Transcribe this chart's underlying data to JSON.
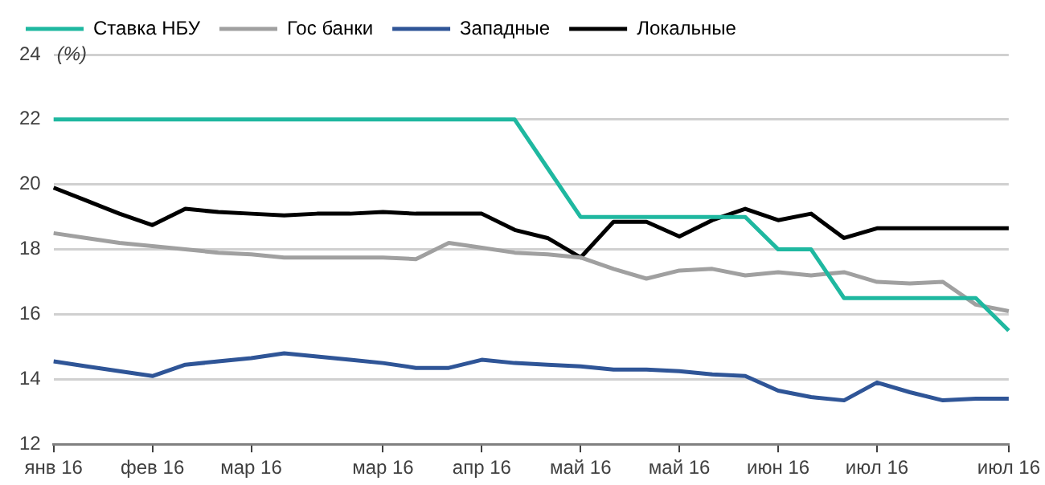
{
  "chart_data": {
    "type": "line",
    "ylabel": "(%)",
    "legend": "top left",
    "grid": "y",
    "marker": "none",
    "line_style": "solid",
    "ylim": [
      12,
      24
    ],
    "yticks": [
      12,
      14,
      16,
      18,
      20,
      22,
      24
    ],
    "categories": [
      "янв 16",
      null,
      null,
      "фев 16",
      null,
      null,
      "мар 16",
      null,
      null,
      null,
      "мар 16",
      null,
      null,
      "апр 16",
      null,
      null,
      "май 16",
      null,
      null,
      "май 16",
      null,
      null,
      "июн 16",
      null,
      null,
      "июл 16",
      null,
      null,
      null,
      "июл 16"
    ],
    "series": [
      {
        "name": "Ставка НБУ",
        "color": "#1fb8a0",
        "values": [
          22,
          22,
          22,
          22,
          22,
          22,
          22,
          22,
          22,
          22,
          22,
          22,
          22,
          22,
          22,
          20.5,
          19,
          19,
          19,
          19,
          19,
          19,
          18,
          18,
          16.5,
          16.5,
          16.5,
          16.5,
          16.5,
          15.5
        ]
      },
      {
        "name": "Гос банки",
        "color": "#a0a0a0",
        "values": [
          18.5,
          18.35,
          18.2,
          18.1,
          18.0,
          17.9,
          17.85,
          17.75,
          17.75,
          17.75,
          17.75,
          17.7,
          18.2,
          18.05,
          17.9,
          17.85,
          17.75,
          17.4,
          17.1,
          17.35,
          17.4,
          17.2,
          17.3,
          17.2,
          17.3,
          17.0,
          16.95,
          17.0,
          16.3,
          16.1
        ]
      },
      {
        "name": "Западные",
        "color": "#2f5597",
        "values": [
          14.55,
          14.4,
          14.25,
          14.1,
          14.45,
          14.55,
          14.65,
          14.8,
          14.7,
          14.6,
          14.5,
          14.35,
          14.35,
          14.6,
          14.5,
          14.45,
          14.4,
          14.3,
          14.3,
          14.25,
          14.15,
          14.1,
          13.65,
          13.45,
          13.35,
          13.9,
          13.6,
          13.35,
          13.4,
          13.4
        ]
      },
      {
        "name": "Локальные",
        "color": "#000000",
        "values": [
          19.9,
          19.5,
          19.1,
          18.75,
          19.25,
          19.15,
          19.1,
          19.05,
          19.1,
          19.1,
          19.15,
          19.1,
          19.1,
          19.1,
          18.6,
          18.35,
          17.75,
          18.85,
          18.85,
          18.4,
          18.9,
          19.25,
          18.9,
          19.1,
          18.35,
          18.65,
          18.65,
          18.65,
          18.65,
          18.65
        ]
      }
    ]
  }
}
